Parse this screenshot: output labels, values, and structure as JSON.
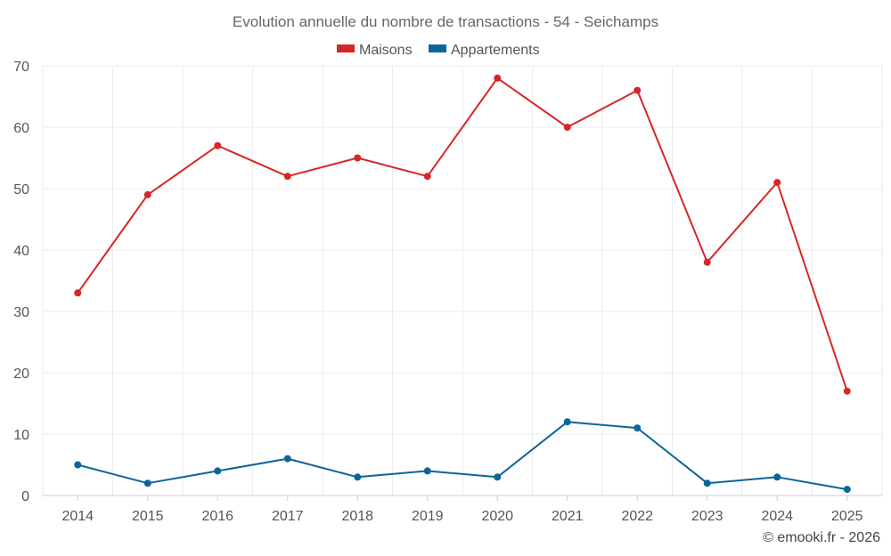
{
  "chart_data": {
    "type": "line",
    "title": "Evolution annuelle du nombre de transactions - 54 - Seichamps",
    "categories": [
      "2014",
      "2015",
      "2016",
      "2017",
      "2018",
      "2019",
      "2020",
      "2021",
      "2022",
      "2023",
      "2024",
      "2025"
    ],
    "series": [
      {
        "name": "Maisons",
        "color": "#d62728",
        "values": [
          33,
          49,
          57,
          52,
          55,
          52,
          68,
          60,
          66,
          38,
          51,
          17
        ]
      },
      {
        "name": "Appartements",
        "color": "#0a6699",
        "values": [
          5,
          2,
          4,
          6,
          3,
          4,
          3,
          12,
          11,
          2,
          3,
          1
        ]
      }
    ],
    "ylim": [
      0,
      70
    ],
    "yticks": [
      0,
      10,
      20,
      30,
      40,
      50,
      60,
      70
    ],
    "grid": true,
    "legend_position": "top-center",
    "credit": "© emooki.fr - 2026"
  }
}
